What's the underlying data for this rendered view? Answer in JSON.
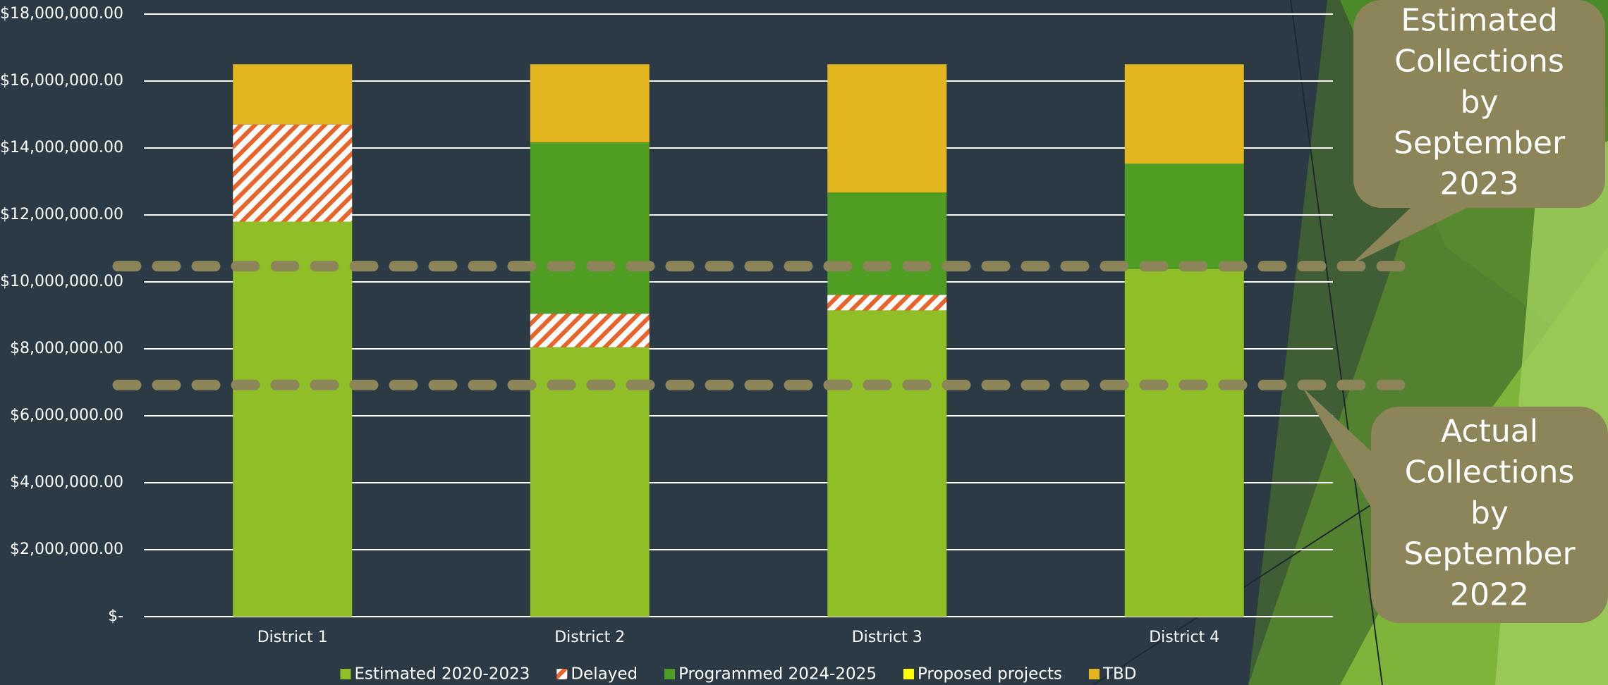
{
  "chart_data": {
    "type": "stacked_bar",
    "categories": [
      "District 1",
      "District 2",
      "District 3",
      "District 4"
    ],
    "series": [
      {
        "name": "Estimated 2020-2023",
        "color": "#8fbe26",
        "values": [
          11800000,
          8050000,
          9150000,
          10380000
        ]
      },
      {
        "name": "Delayed",
        "color": "#e8642a",
        "hatch": true,
        "values": [
          2900000,
          1000000,
          460000,
          0
        ]
      },
      {
        "name": "Programmed 2024-2025",
        "color": "#4f9e22",
        "values": [
          0,
          5120000,
          3060000,
          3150000
        ]
      },
      {
        "name": "Proposed projects",
        "color": "#ffff00",
        "values": [
          0,
          0,
          0,
          0
        ]
      },
      {
        "name": "TBD",
        "color": "#e3b61f",
        "values": [
          1800000,
          2330000,
          3830000,
          2970000
        ]
      }
    ],
    "ylim": [
      0,
      18000000
    ],
    "yticks": [
      {
        "value": 0,
        "label": "$-"
      },
      {
        "value": 2000000,
        "label": "$2,000,000.00"
      },
      {
        "value": 4000000,
        "label": "$4,000,000.00"
      },
      {
        "value": 6000000,
        "label": "$6,000,000.00"
      },
      {
        "value": 8000000,
        "label": "$8,000,000.00"
      },
      {
        "value": 10000000,
        "label": "$10,000,000.00"
      },
      {
        "value": 12000000,
        "label": "$12,000,000.00"
      },
      {
        "value": 14000000,
        "label": "$14,000,000.00"
      },
      {
        "value": 16000000,
        "label": "$16,000,000.00"
      },
      {
        "value": 18000000,
        "label": "$18,000,000.00"
      }
    ],
    "grid": true,
    "legend": "bottom",
    "reference_lines": [
      {
        "value": 10470000,
        "label": [
          "Estimated",
          "Collections",
          "by",
          "September",
          "2023"
        ]
      },
      {
        "value": 6920000,
        "label": [
          "Actual",
          "Collections",
          "by",
          "September",
          "2022"
        ]
      }
    ]
  }
}
